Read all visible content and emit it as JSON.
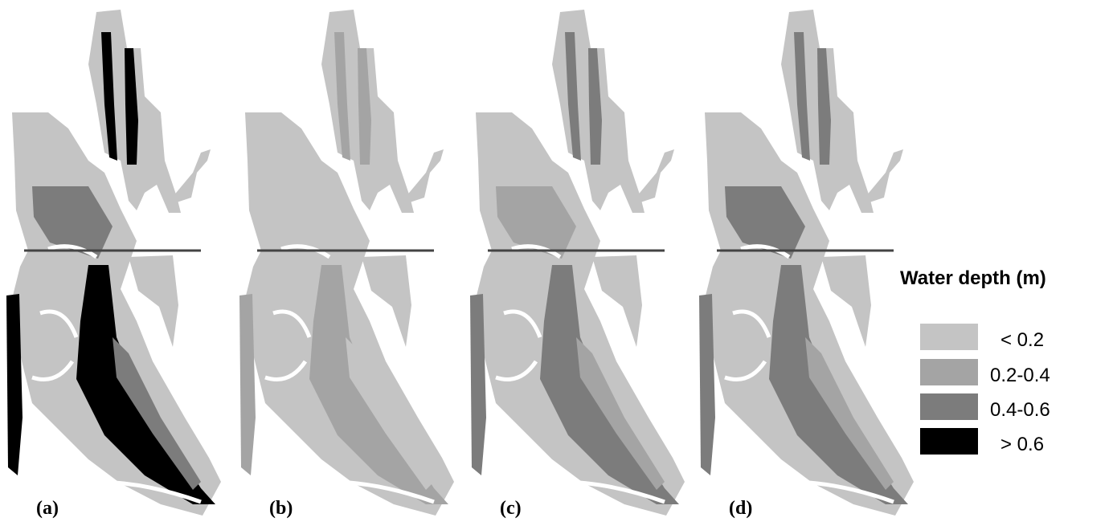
{
  "panels": [
    {
      "label": "(a)"
    },
    {
      "label": "(b)"
    },
    {
      "label": "(c)"
    },
    {
      "label": "(d)"
    }
  ],
  "legend": {
    "title": "Water depth (m)",
    "items": [
      {
        "label": "< 0.2",
        "color": "#c4c4c4"
      },
      {
        "label": "0.2-0.4",
        "color": "#a4a4a4"
      },
      {
        "label": "0.4-0.6",
        "color": "#7c7c7c"
      },
      {
        "label": "> 0.6",
        "color": "#000000"
      }
    ]
  }
}
